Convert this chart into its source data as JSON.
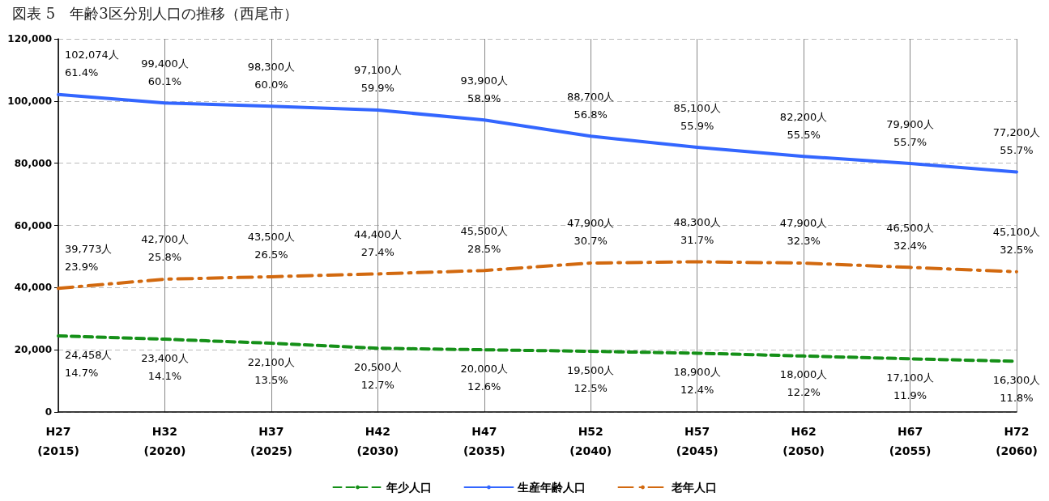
{
  "chart_data": {
    "type": "line",
    "title": "図表 5　年齢3区分別人口の推移（西尾市）",
    "categories": [
      "H27\n(2015)",
      "H32\n(2020)",
      "H37\n(2025)",
      "H42\n(2030)",
      "H47\n(2035)",
      "H52\n(2040)",
      "H57\n(2045)",
      "H62\n(2050)",
      "H67\n(2055)",
      "H72\n(2060)"
    ],
    "series": [
      {
        "name": "年少人口",
        "color": "#159018",
        "line_style": "dashed",
        "values": [
          24458,
          23400,
          22100,
          20500,
          20000,
          19500,
          18900,
          18000,
          17100,
          16300
        ],
        "value_labels": [
          "24,458人\n14.7%",
          "23,400人\n14.1%",
          "22,100人\n13.5%",
          "20,500人\n12.7%",
          "20,000人\n12.6%",
          "19,500人\n12.5%",
          "18,900人\n12.4%",
          "18,000人\n12.2%",
          "17,100人\n11.9%",
          "16,300人\n11.8%"
        ]
      },
      {
        "name": "生産年齢人口",
        "color": "#3366ff",
        "line_style": "solid",
        "values": [
          102074,
          99400,
          98300,
          97100,
          93900,
          88700,
          85100,
          82200,
          79900,
          77200
        ],
        "value_labels": [
          "102,074人\n61.4%",
          "99,400人\n60.1%",
          "98,300人\n60.0%",
          "97,100人\n59.9%",
          "93,900人\n58.9%",
          "88,700人\n56.8%",
          "85,100人\n55.9%",
          "82,200人\n55.5%",
          "79,900人\n55.7%",
          "77,200人\n55.7%"
        ]
      },
      {
        "name": "老年人口",
        "color": "#d2690f",
        "line_style": "dashdot",
        "values": [
          39773,
          42700,
          43500,
          44400,
          45500,
          47900,
          48300,
          47900,
          46500,
          45100
        ],
        "value_labels": [
          "39,773人\n23.9%",
          "42,700人\n25.8%",
          "43,500人\n26.5%",
          "44,400人\n27.4%",
          "45,500人\n28.5%",
          "47,900人\n30.7%",
          "48,300人\n31.7%",
          "47,900人\n32.3%",
          "46,500人\n32.4%",
          "45,100人\n32.5%"
        ]
      }
    ],
    "ylim": [
      0,
      120000
    ],
    "yticks": [
      0,
      {
        "value": 20000,
        "label": "20,000"
      },
      {
        "value": 40000,
        "label": "40,000"
      },
      {
        "value": 60000,
        "label": "60,000"
      },
      {
        "value": 80000,
        "label": "80,000"
      },
      {
        "value": 100000,
        "label": "100,000"
      },
      {
        "value": 120000,
        "label": "120,000"
      }
    ],
    "grid": true,
    "legend": "bottom",
    "marker": "none"
  }
}
